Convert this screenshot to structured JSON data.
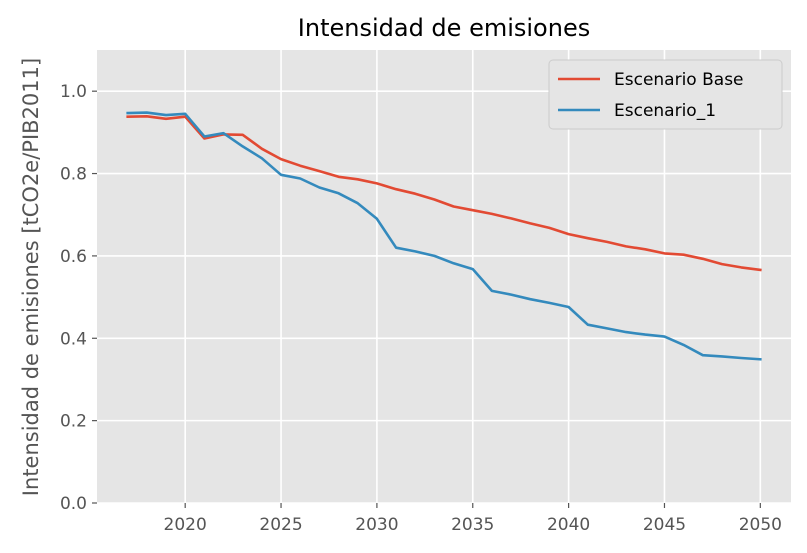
{
  "chart_data": {
    "type": "line",
    "title": "Intensidad de emisiones",
    "xlabel": "",
    "ylabel": "Intensidad de emisiones [tCO2e/PIB2011]",
    "xlim": [
      2015.4,
      2051.6
    ],
    "ylim": [
      0,
      1.1
    ],
    "x_ticks": [
      2020,
      2025,
      2030,
      2035,
      2040,
      2045,
      2050
    ],
    "x_tick_labels": [
      "2020",
      "2025",
      "2030",
      "2035",
      "2040",
      "2045",
      "2050"
    ],
    "y_ticks": [
      0.0,
      0.2,
      0.4,
      0.6,
      0.8,
      1.0
    ],
    "y_tick_labels": [
      "0.0",
      "0.2",
      "0.4",
      "0.6",
      "0.8",
      "1.0"
    ],
    "grid": true,
    "legend_position": "top-right",
    "x": [
      2017,
      2018,
      2019,
      2020,
      2021,
      2022,
      2023,
      2024,
      2025,
      2026,
      2027,
      2028,
      2029,
      2030,
      2031,
      2032,
      2033,
      2034,
      2035,
      2036,
      2037,
      2038,
      2039,
      2040,
      2041,
      2042,
      2043,
      2044,
      2045,
      2046,
      2047,
      2048,
      2049,
      2050
    ],
    "series": [
      {
        "name": "Escenario Base",
        "color": "#E24A33",
        "values": [
          0.938,
          0.939,
          0.933,
          0.938,
          0.885,
          0.895,
          0.894,
          0.86,
          0.835,
          0.819,
          0.806,
          0.792,
          0.786,
          0.776,
          0.762,
          0.751,
          0.737,
          0.72,
          0.711,
          0.702,
          0.691,
          0.679,
          0.668,
          0.653,
          0.643,
          0.634,
          0.623,
          0.616,
          0.606,
          0.603,
          0.593,
          0.58,
          0.572,
          0.566
        ]
      },
      {
        "name": "Escenario_1",
        "color": "#348ABD",
        "values": [
          0.947,
          0.948,
          0.942,
          0.945,
          0.89,
          0.898,
          0.866,
          0.837,
          0.797,
          0.788,
          0.766,
          0.752,
          0.728,
          0.69,
          0.62,
          0.611,
          0.6,
          0.582,
          0.568,
          0.515,
          0.506,
          0.495,
          0.486,
          0.476,
          0.433,
          0.424,
          0.415,
          0.409,
          0.404,
          0.384,
          0.359,
          0.356,
          0.352,
          0.349
        ]
      }
    ]
  }
}
